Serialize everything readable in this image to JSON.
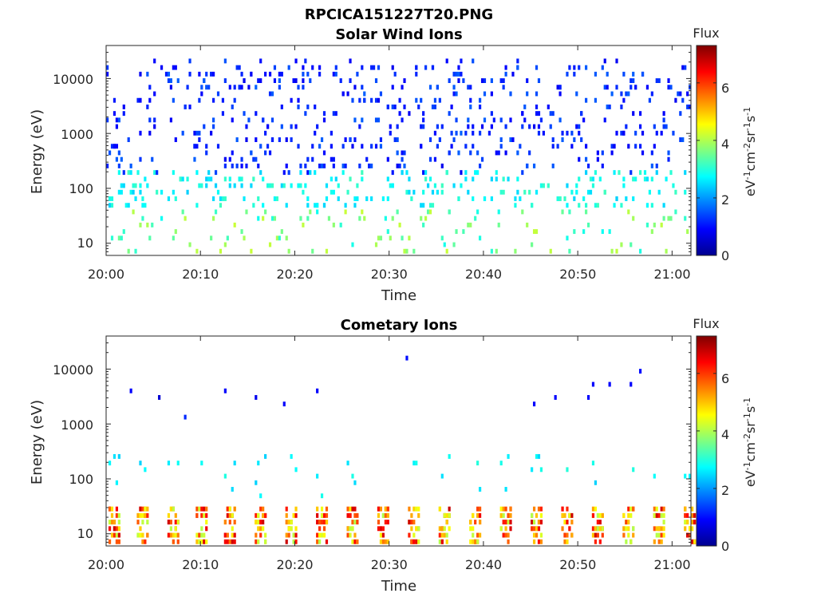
{
  "figure_title": "RPCICA151227T20.PNG",
  "chart_data": [
    {
      "type": "heatmap",
      "title": "Solar Wind Ions",
      "xlabel": "Time",
      "ylabel": "Energy (eV)",
      "yscale": "log",
      "xlim": [
        "20:00",
        "21:02"
      ],
      "ylim": [
        6,
        40000
      ],
      "xticks": [
        "20:00",
        "20:10",
        "20:20",
        "20:30",
        "20:40",
        "20:50",
        "21:00"
      ],
      "yticks": [
        "10",
        "100",
        "1000",
        "10000"
      ],
      "colorbar": {
        "title": "Flux",
        "label": "eV-1cm-2sr-1s-1",
        "min": 0,
        "max": 7.3,
        "ticks": [
          "0",
          "2",
          "4",
          "6"
        ],
        "colormap": "jet"
      },
      "data_description_visible": {
        "high_energy_band": {
          "energy_range": [
            200,
            20000
          ],
          "flux_range": [
            0.8,
            1.6
          ]
        },
        "mid_energy_band": {
          "energy_range": [
            40,
            200
          ],
          "flux_range": [
            2.4,
            3.2
          ]
        },
        "low_energy_band": {
          "energy_range": [
            6,
            40
          ],
          "flux_range": [
            2.8,
            4.2
          ]
        }
      }
    },
    {
      "type": "heatmap",
      "title": "Cometary Ions",
      "xlabel": "Time",
      "ylabel": "Energy (eV)",
      "yscale": "log",
      "xlim": [
        "20:00",
        "21:02"
      ],
      "ylim": [
        6,
        40000
      ],
      "xticks": [
        "20:00",
        "20:10",
        "20:20",
        "20:30",
        "20:40",
        "20:50",
        "21:00"
      ],
      "yticks": [
        "10",
        "100",
        "1000",
        "10000"
      ],
      "colorbar": {
        "title": "Flux",
        "label": "eV-1cm-2sr-1s-1",
        "min": 0,
        "max": 7.3,
        "ticks": [
          "0",
          "2",
          "4",
          "6"
        ],
        "colormap": "jet"
      },
      "periodic_low_energy_bursts_minutes": [
        0.3,
        3.3,
        6.5,
        9.6,
        12.7,
        15.9,
        19.1,
        22.3,
        25.6,
        28.8,
        32.0,
        35.3,
        38.6,
        41.8,
        45.0,
        48.3,
        51.6,
        54.8,
        58.1,
        61.3
      ],
      "burst_energy_range": [
        6,
        30
      ],
      "burst_flux_range": [
        4.0,
        6.8
      ],
      "sparse_high_energy_points": [
        {
          "t_min": 2.5,
          "energy": 3400,
          "flux": 0.9
        },
        {
          "t_min": 5.7,
          "energy": 2800,
          "flux": 0.6
        },
        {
          "t_min": 8.3,
          "energy": 1200,
          "flux": 1.2
        },
        {
          "t_min": 12.7,
          "energy": 3900,
          "flux": 0.9
        },
        {
          "t_min": 15.8,
          "energy": 2900,
          "flux": 0.8
        },
        {
          "t_min": 18.8,
          "energy": 2300,
          "flux": 0.9
        },
        {
          "t_min": 22.3,
          "energy": 4100,
          "flux": 0.9
        },
        {
          "t_min": 31.8,
          "energy": 17000,
          "flux": 1.0
        },
        {
          "t_min": 45.4,
          "energy": 2200,
          "flux": 0.9
        },
        {
          "t_min": 47.5,
          "energy": 2600,
          "flux": 0.9
        },
        {
          "t_min": 51.0,
          "energy": 3300,
          "flux": 0.9
        },
        {
          "t_min": 51.5,
          "energy": 4900,
          "flux": 0.9
        },
        {
          "t_min": 53.3,
          "energy": 4900,
          "flux": 0.9
        },
        {
          "t_min": 55.5,
          "energy": 4900,
          "flux": 0.9
        },
        {
          "t_min": 56.7,
          "energy": 8500,
          "flux": 1.0
        }
      ]
    }
  ]
}
